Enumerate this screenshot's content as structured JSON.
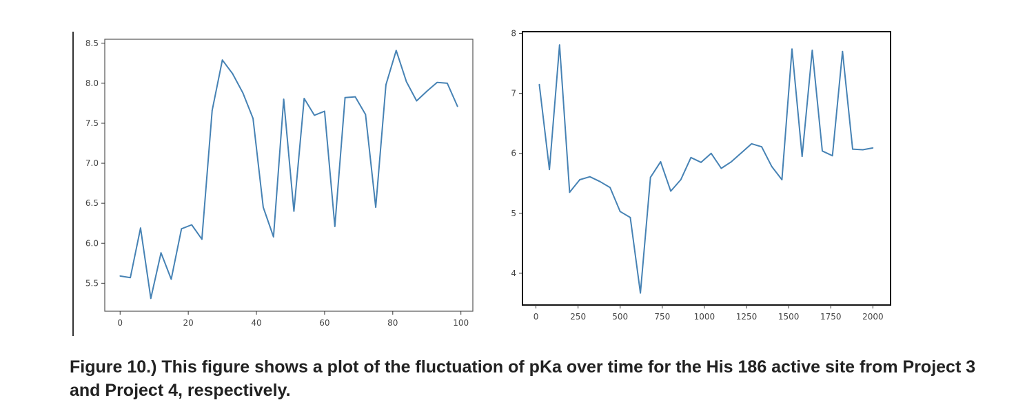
{
  "chart_data": [
    {
      "type": "line",
      "title": "",
      "xlabel": "",
      "ylabel": "",
      "xlim": [
        -4.5,
        103.5
      ],
      "ylim": [
        5.15,
        8.55
      ],
      "x_ticks": [
        0,
        20,
        40,
        60,
        80,
        100
      ],
      "y_ticks": [
        5.5,
        6.0,
        6.5,
        7.0,
        7.5,
        8.0,
        8.5
      ],
      "y_tick_labels": [
        "5.5",
        "6.0",
        "6.5",
        "7.0",
        "7.5",
        "8.0",
        "8.5"
      ],
      "grid": false,
      "series": [
        {
          "color": "#4682b4",
          "x": [
            0,
            3,
            6,
            9,
            12,
            15,
            18,
            21,
            24,
            27,
            30,
            33,
            36,
            39,
            42,
            45,
            48,
            51,
            54,
            57,
            60,
            63,
            66,
            69,
            72,
            75,
            78,
            81,
            84,
            87,
            90,
            93,
            96,
            99
          ],
          "y": [
            5.59,
            5.57,
            6.19,
            5.31,
            5.88,
            5.55,
            6.18,
            6.23,
            6.05,
            7.66,
            8.29,
            8.12,
            7.88,
            7.56,
            6.45,
            6.08,
            7.8,
            6.4,
            7.81,
            7.6,
            7.65,
            6.21,
            7.82,
            7.83,
            7.61,
            6.45,
            7.98,
            8.41,
            8.02,
            7.78,
            7.9,
            8.01,
            8.0,
            7.71
          ]
        }
      ]
    },
    {
      "type": "line",
      "title": "",
      "xlabel": "",
      "ylabel": "",
      "xlim": [
        -80,
        2105
      ],
      "ylim": [
        3.47,
        8.03
      ],
      "x_ticks": [
        0,
        250,
        500,
        750,
        1000,
        1250,
        1500,
        1750,
        2000
      ],
      "y_ticks": [
        4,
        5,
        6,
        7,
        8
      ],
      "y_tick_labels": [
        "4",
        "5",
        "6",
        "7",
        "8"
      ],
      "grid": false,
      "series": [
        {
          "color": "#4682b4",
          "x": [
            20,
            80,
            140,
            200,
            260,
            320,
            380,
            440,
            500,
            560,
            620,
            680,
            740,
            800,
            860,
            920,
            980,
            1040,
            1100,
            1160,
            1220,
            1280,
            1340,
            1400,
            1460,
            1520,
            1580,
            1640,
            1700,
            1760,
            1820,
            1880,
            1940,
            2000
          ],
          "y": [
            7.15,
            5.73,
            7.81,
            5.35,
            5.56,
            5.61,
            5.53,
            5.43,
            5.03,
            4.93,
            3.67,
            5.6,
            5.86,
            5.37,
            5.56,
            5.93,
            5.85,
            6.0,
            5.75,
            5.86,
            6.01,
            6.16,
            6.11,
            5.78,
            5.56,
            7.74,
            5.95,
            7.72,
            6.04,
            5.96,
            7.7,
            6.07,
            6.06,
            6.09
          ]
        }
      ]
    }
  ],
  "caption": "Figure 10.) This figure shows a plot of the fluctuation of pKa over time for the His 186 active site from Project 3 and Project 4, respectively."
}
